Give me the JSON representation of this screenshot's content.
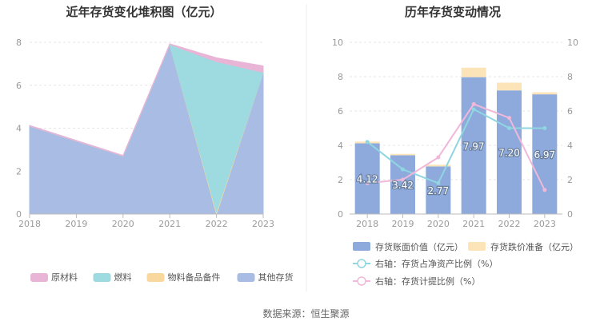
{
  "footer": {
    "source": "数据来源：恒生聚源"
  },
  "chart_data": [
    {
      "type": "area",
      "stacked": true,
      "title": "近年存货变化堆积图（亿元）",
      "x": [
        "2018",
        "2019",
        "2020",
        "2021",
        "2022",
        "2023"
      ],
      "ylim": [
        0,
        8
      ],
      "yticks": [
        0,
        2,
        4,
        6,
        8
      ],
      "grid": true,
      "legend_position": "bottom",
      "series": [
        {
          "name": "原材料",
          "color": "#e8b5d6",
          "values": [
            0.03,
            0.03,
            0.03,
            0.03,
            0.18,
            0.3
          ]
        },
        {
          "name": "燃料",
          "color": "#9ddbe0",
          "values": [
            0,
            0,
            0,
            0,
            7.0,
            0
          ]
        },
        {
          "name": "物料备品备件",
          "color": "#f9d8a0",
          "values": [
            0,
            0,
            0,
            0,
            0.1,
            0
          ]
        },
        {
          "name": "其他存货",
          "color": "#a8bce4",
          "values": [
            4.1,
            3.4,
            2.7,
            7.9,
            0,
            6.6
          ]
        }
      ]
    },
    {
      "type": "bar",
      "stacked": true,
      "title": "历年存货变动情况",
      "categories": [
        "2018",
        "2019",
        "2020",
        "2021",
        "2022",
        "2023"
      ],
      "ylim": [
        0,
        10
      ],
      "yticks": [
        0,
        2,
        4,
        6,
        8,
        10
      ],
      "y2lim": [
        0,
        10
      ],
      "y2ticks": [
        0,
        2,
        4,
        6,
        8,
        10
      ],
      "grid": true,
      "legend_position": "bottom",
      "series": [
        {
          "name": "存货账面价值（亿元）",
          "color": "#8eaadc",
          "values": [
            4.12,
            3.42,
            2.77,
            7.97,
            7.2,
            6.97
          ],
          "data_labels": [
            "4.12",
            "3.42",
            "2.77",
            "7.97",
            "7.20",
            "6.97"
          ]
        },
        {
          "name": "存货跌价准备（亿元）",
          "color": "#fde4b8",
          "values": [
            0.1,
            0.08,
            0.1,
            0.55,
            0.45,
            0.12
          ]
        }
      ],
      "line_series": [
        {
          "name": "右轴：存货占净资产比例（%）",
          "color": "#8fd6e1",
          "axis": "right",
          "values": [
            4.2,
            2.6,
            1.8,
            6.1,
            5.0,
            5.0
          ]
        },
        {
          "name": "右轴：存货计提比例（%）",
          "color": "#f0b8d9",
          "axis": "right",
          "values": [
            1.8,
            2.0,
            3.3,
            6.4,
            5.6,
            1.4
          ]
        }
      ]
    }
  ]
}
